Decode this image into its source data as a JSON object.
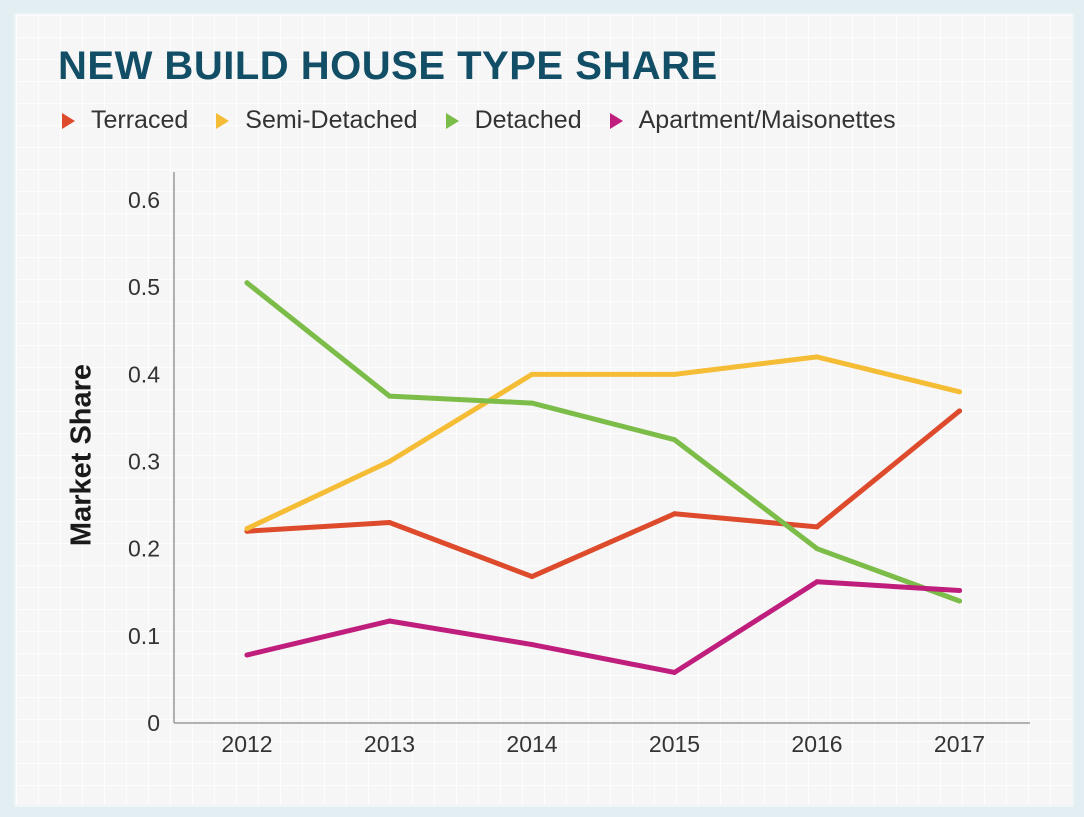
{
  "colors": {
    "title": "#124e66",
    "terraced": "#dd4a2c",
    "semi_detached": "#f5bd36",
    "detached": "#7cbc48",
    "apartment": "#bf1e7d"
  },
  "chart_data": {
    "type": "line",
    "title": "NEW BUILD HOUSE TYPE SHARE",
    "xlabel": "",
    "ylabel": "Market Share",
    "x": [
      "2012",
      "2013",
      "2014",
      "2015",
      "2016",
      "2017"
    ],
    "ylim": [
      0,
      0.6
    ],
    "yticks": [
      "0",
      "0.1",
      "0.2",
      "0.3",
      "0.4",
      "0.5",
      "0.6"
    ],
    "grid": false,
    "legend_position": "top",
    "series": [
      {
        "name": "Terraced",
        "color": "#dd4a2c",
        "values": [
          0.22,
          0.23,
          0.168,
          0.24,
          0.225,
          0.358
        ]
      },
      {
        "name": "Semi-Detached",
        "color": "#f5bd36",
        "values": [
          0.223,
          0.3,
          0.4,
          0.4,
          0.42,
          0.38
        ]
      },
      {
        "name": "Detached",
        "color": "#7cbc48",
        "values": [
          0.505,
          0.375,
          0.367,
          0.325,
          0.2,
          0.14
        ]
      },
      {
        "name": "Apartment/Maisonettes",
        "color": "#bf1e7d",
        "values": [
          0.078,
          0.117,
          0.09,
          0.058,
          0.162,
          0.152
        ]
      }
    ]
  }
}
